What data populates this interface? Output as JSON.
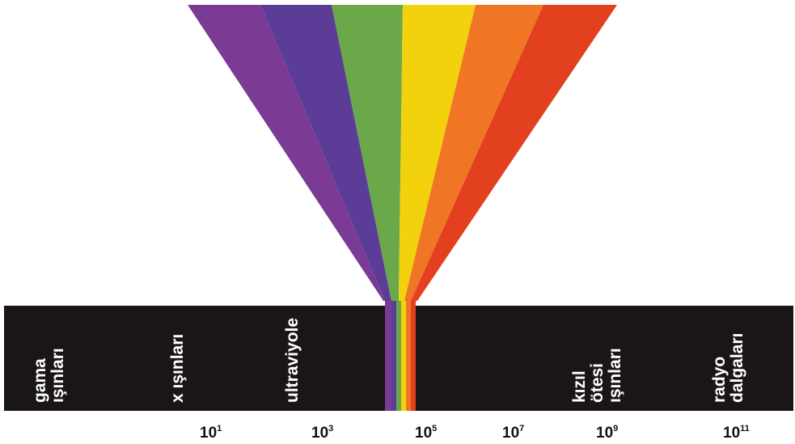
{
  "colors": {
    "background": "#ffffff",
    "bar": "#1a1617",
    "label_text": "#ffffff",
    "tick_text": "#111111",
    "spectrum": [
      "#7b3a93",
      "#5b3d97",
      "#6ba84a",
      "#f2d20c",
      "#f07524",
      "#e3401f"
    ]
  },
  "spectrum_colors_names": [
    "violet",
    "indigo",
    "green",
    "yellow",
    "orange",
    "red"
  ],
  "bands": {
    "gamma": [
      "gama",
      "ışınları"
    ],
    "xray": [
      "x ışınları"
    ],
    "ultraviolet": [
      "ultraviyole"
    ],
    "infrared": [
      "kızıl",
      "ötesi",
      "ışınları"
    ],
    "radio": [
      "radyo",
      "dalgaları"
    ]
  },
  "scale": [
    {
      "base": "10",
      "exp": "1"
    },
    {
      "base": "10",
      "exp": "3"
    },
    {
      "base": "10",
      "exp": "5"
    },
    {
      "base": "10",
      "exp": "7"
    },
    {
      "base": "10",
      "exp": "9"
    },
    {
      "base": "10",
      "exp": "11"
    }
  ]
}
